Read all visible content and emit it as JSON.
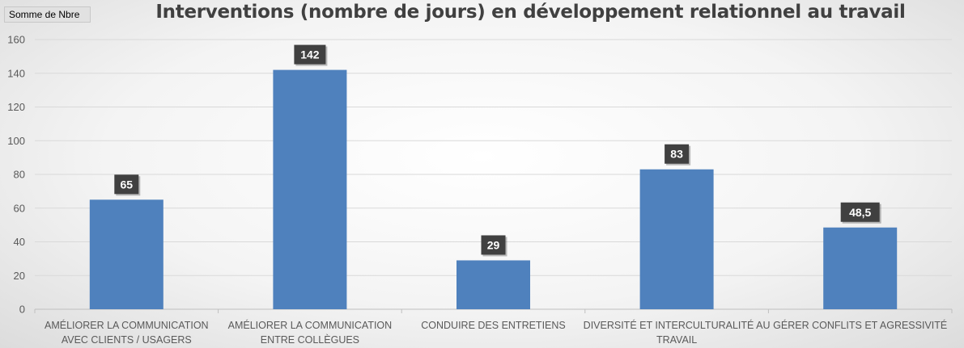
{
  "pivot_field_button": "Somme de Nbre",
  "chart_data": {
    "type": "bar",
    "title": "Interventions (nombre de jours) en développement relationnel au travail",
    "categories": [
      [
        "AMÉLIORER LA COMMUNICATION",
        "AVEC CLIENTS / USAGERS"
      ],
      [
        "AMÉLIORER LA COMMUNICATION",
        "ENTRE COLLÈGUES"
      ],
      [
        "CONDUIRE DES ENTRETIENS"
      ],
      [
        "DIVERSITÉ ET INTERCULTURALITÉ AU",
        "TRAVAIL"
      ],
      [
        "GÉRER CONFLITS ET AGRESSIVITÉ"
      ]
    ],
    "values": [
      65,
      142,
      29,
      83,
      48.5
    ],
    "data_labels": [
      "65",
      "142",
      "29",
      "83",
      "48,5"
    ],
    "ylim": [
      0,
      160
    ],
    "yticks": [
      "0",
      "20",
      "40",
      "60",
      "80",
      "100",
      "120",
      "140",
      "160"
    ],
    "xlabel": "",
    "ylabel": "",
    "grid": true,
    "bar_color": "#4f81bd",
    "label_bg_color": "#404040",
    "grid_color": "#d9d9d9"
  }
}
